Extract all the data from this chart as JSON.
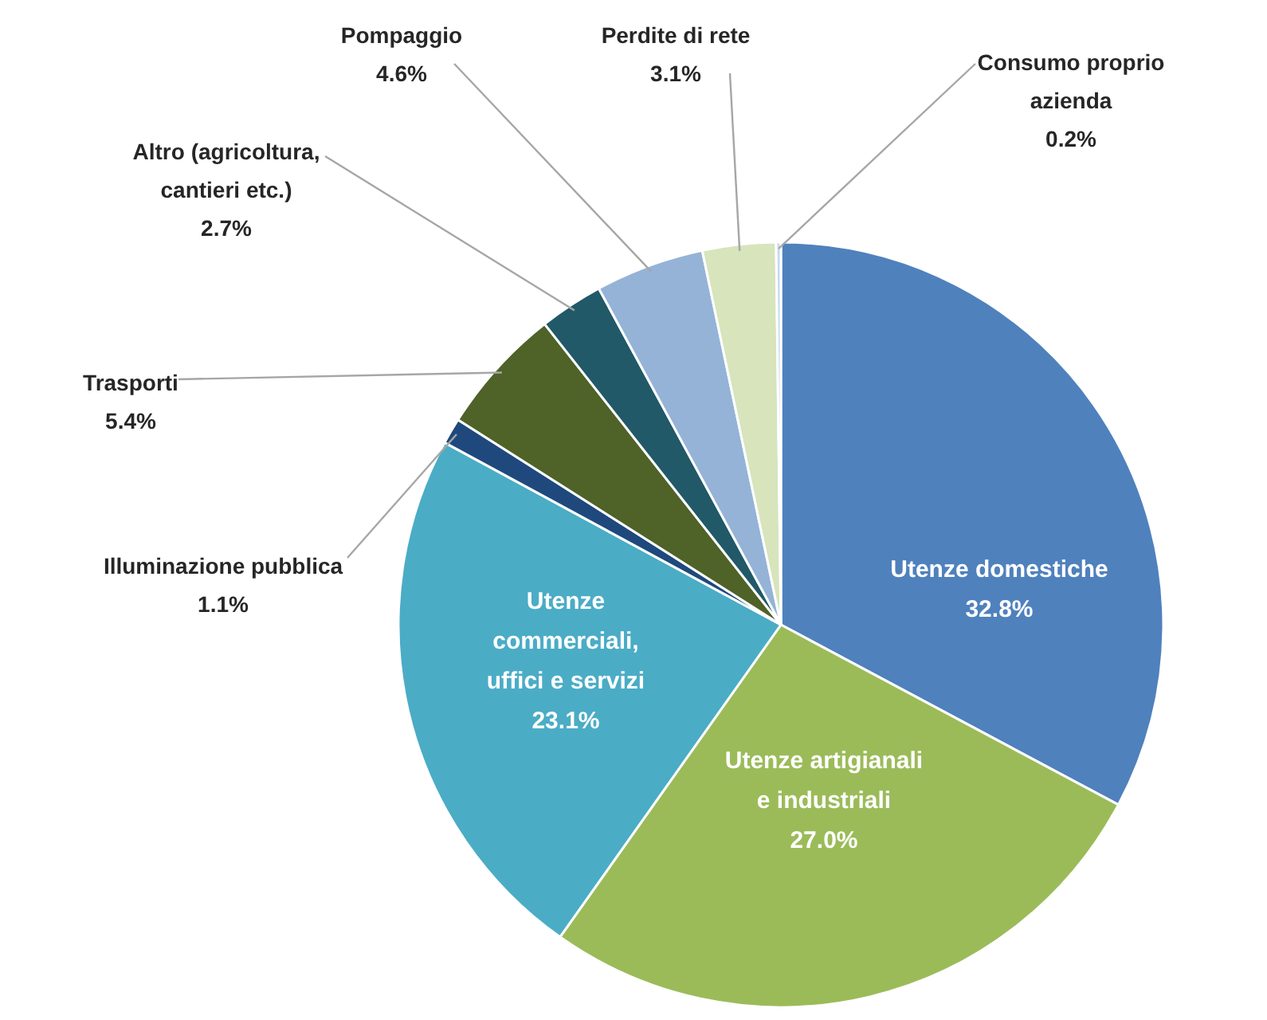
{
  "chart_data": {
    "type": "pie",
    "categories": [
      "Utenze domestiche",
      "Utenze artigianali e industriali",
      "Utenze commerciali, uffici e servizi",
      "Illuminazione pubblica",
      "Trasporti",
      "Altro (agricoltura, cantieri etc.)",
      "Pompaggio",
      "Perdite di rete",
      "Consumo proprio azienda"
    ],
    "values": [
      32.8,
      27.0,
      23.1,
      1.1,
      5.4,
      2.7,
      4.6,
      3.1,
      0.2
    ],
    "value_labels": [
      "32.8%",
      "27.0%",
      "23.1%",
      "1.1%",
      "5.4%",
      "2.7%",
      "4.6%",
      "3.1%",
      "0.2%"
    ],
    "colors": [
      "#4f81bd",
      "#9bbb59",
      "#4bacc6",
      "#1f497d",
      "#4f6228",
      "#215968",
      "#95b3d7",
      "#d7e4bc",
      "#c6d9f1"
    ]
  }
}
